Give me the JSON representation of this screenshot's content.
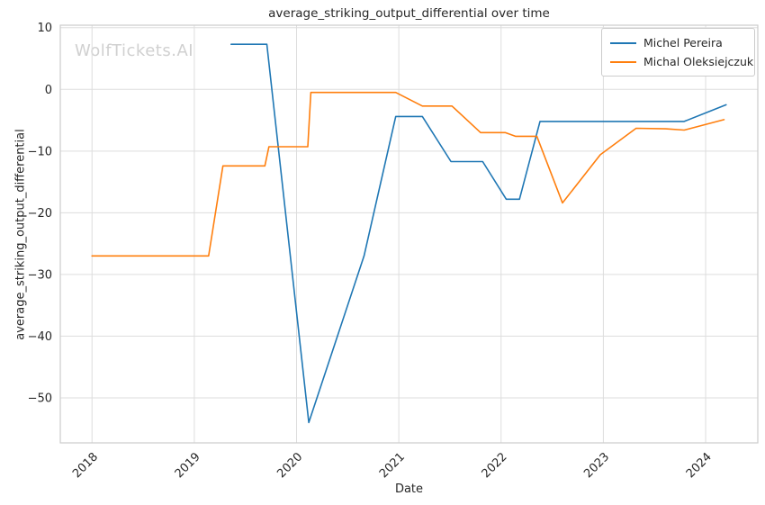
{
  "watermark": "WolfTickets.AI",
  "title": "average_striking_output_differential over time",
  "axes": {
    "xlabel": "Date",
    "ylabel": "average_striking_output_differential"
  },
  "legend": [
    {
      "label": "Michel Pereira",
      "color": "#1f77b4"
    },
    {
      "label": "Michal Oleksiejczuk",
      "color": "#ff7f0e"
    }
  ],
  "colors": {
    "grid": "#dddddd",
    "frame": "#cccccc",
    "text": "#262626",
    "watermark": "#d0d0d0"
  },
  "chart_data": {
    "type": "line",
    "title": "average_striking_output_differential over time",
    "xlabel": "Date",
    "ylabel": "average_striking_output_differential",
    "grid": true,
    "legend_position": "upper right",
    "xlim": [
      2017.69,
      2024.51
    ],
    "ylim": [
      -57.3,
      10.4
    ],
    "x_ticks": [
      2018,
      2019,
      2020,
      2021,
      2022,
      2023,
      2024
    ],
    "x_tick_labels": [
      "2018",
      "2019",
      "2020",
      "2021",
      "2022",
      "2023",
      "2024"
    ],
    "y_ticks": [
      10,
      0,
      -10,
      -20,
      -30,
      -40,
      -50
    ],
    "y_tick_labels": [
      "10",
      "0",
      "−10",
      "−20",
      "−30",
      "−40",
      "−50"
    ],
    "series": [
      {
        "name": "Michel Pereira",
        "color": "#1f77b4",
        "x": [
          2019.36,
          2019.71,
          2020.12,
          2020.66,
          2020.97,
          2021.23,
          2021.51,
          2021.82,
          2022.05,
          2022.18,
          2022.38,
          2023.79,
          2024.2
        ],
        "y": [
          7.3,
          7.3,
          -54.0,
          -27.0,
          -4.4,
          -4.4,
          -11.7,
          -11.7,
          -17.8,
          -17.8,
          -5.2,
          -5.2,
          -2.5
        ]
      },
      {
        "name": "Michal Oleksiejczuk",
        "color": "#ff7f0e",
        "x": [
          2018.0,
          2019.14,
          2019.28,
          2019.69,
          2019.73,
          2020.11,
          2020.14,
          2020.97,
          2021.23,
          2021.52,
          2021.8,
          2022.04,
          2022.14,
          2022.35,
          2022.6,
          2022.97,
          2023.32,
          2023.61,
          2023.79,
          2024.18
        ],
        "y": [
          -27.0,
          -27.0,
          -12.4,
          -12.4,
          -9.3,
          -9.3,
          -0.5,
          -0.5,
          -2.7,
          -2.7,
          -7.0,
          -7.0,
          -7.6,
          -7.6,
          -18.4,
          -10.6,
          -6.3,
          -6.4,
          -6.6,
          -4.9
        ]
      }
    ]
  }
}
